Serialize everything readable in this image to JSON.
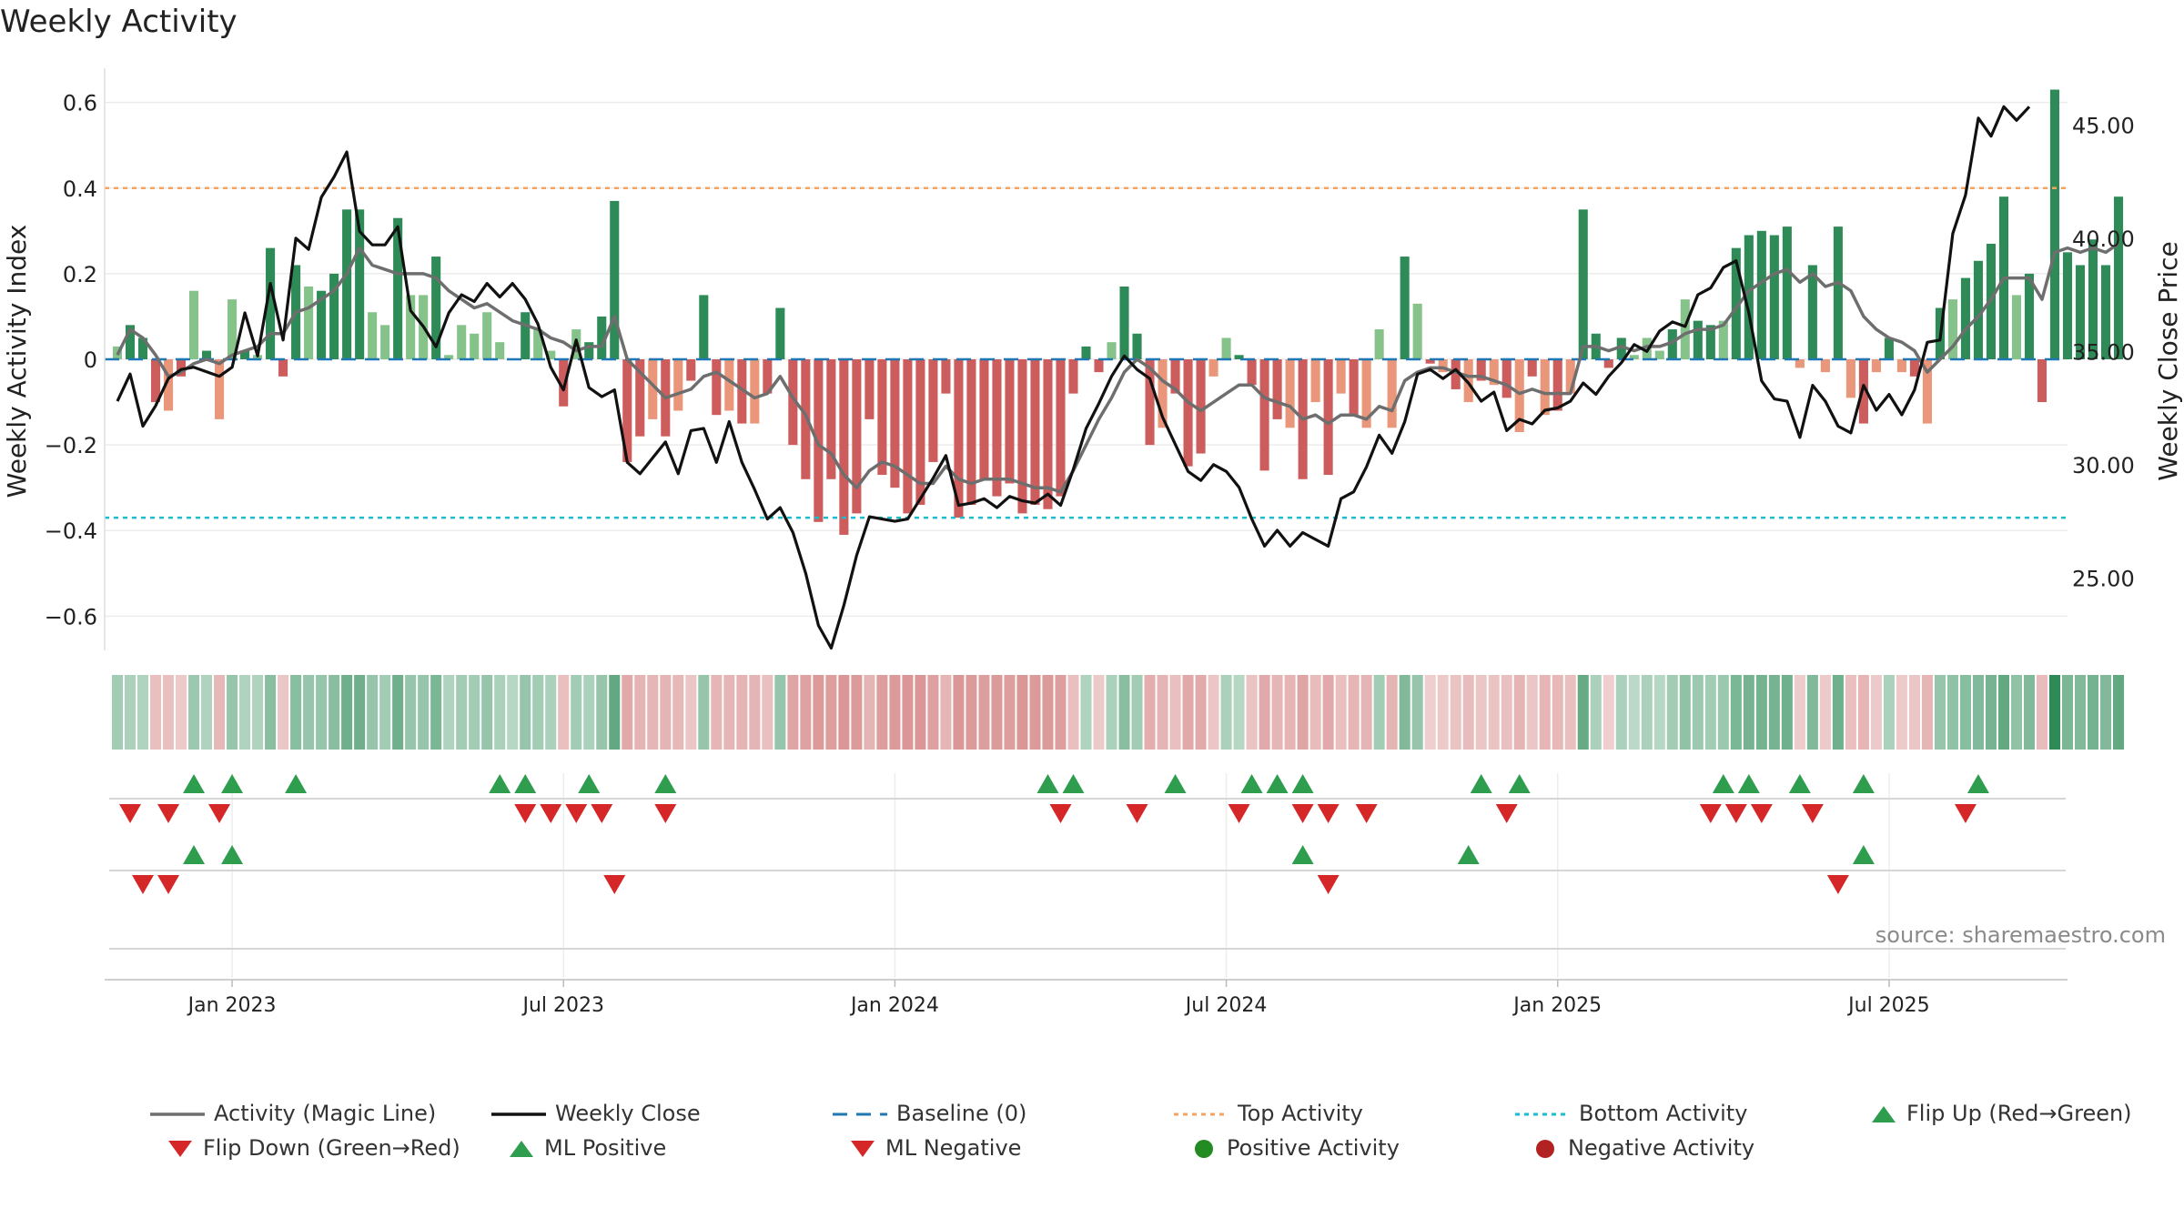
{
  "title": "Weekly Activity",
  "source": "source: sharemaestro.com",
  "colors": {
    "pos_strong": "#2e8b57",
    "pos_light": "#86c38a",
    "neg_strong": "#cd5c5c",
    "neg_light": "#e9967a",
    "magic_line": "#6e6e6e",
    "weekly_close": "#111111",
    "baseline": "#1f77b4",
    "top_activity": "#f4a460",
    "bottom_activity": "#17becf",
    "flip_up": "#2e9d4e",
    "flip_down": "#d62728"
  },
  "legend": [
    {
      "key": "magic",
      "label": "Activity (Magic Line)"
    },
    {
      "key": "close",
      "label": "Weekly Close"
    },
    {
      "key": "baseline",
      "label": "Baseline (0)"
    },
    {
      "key": "top",
      "label": "Top Activity"
    },
    {
      "key": "bottom",
      "label": "Bottom Activity"
    },
    {
      "key": "flipup",
      "label": "Flip Up (Red→Green)"
    },
    {
      "key": "flipdown",
      "label": "Flip Down (Green→Red)"
    },
    {
      "key": "mlpos",
      "label": "ML Positive"
    },
    {
      "key": "mlneg",
      "label": "ML Negative"
    },
    {
      "key": "posact",
      "label": "Positive Activity"
    },
    {
      "key": "negact",
      "label": "Negative Activity"
    }
  ],
  "chart_data": {
    "type": "bar",
    "title": "Weekly Activity",
    "ylabel": "Weekly Activity Index",
    "y2label": "Weekly Close Price",
    "ylim": [
      -0.68,
      0.68
    ],
    "y2lim": [
      21.8,
      47.5
    ],
    "yticks": [
      -0.6,
      -0.4,
      -0.2,
      0,
      0.2,
      0.4,
      0.6
    ],
    "ytick_labels": [
      "−0.6",
      "−0.4",
      "−0.2",
      "0",
      "0.2",
      "0.4",
      "0.6"
    ],
    "y2ticks": [
      25,
      30,
      35,
      40,
      45
    ],
    "y2tick_labels": [
      "25.00",
      "30.00",
      "35.00",
      "40.00",
      "45.00"
    ],
    "x_start_week": -9,
    "x_range_weeks": [
      -10,
      144
    ],
    "x_tick_weeks": [
      0,
      26,
      52,
      78,
      104,
      130
    ],
    "x_tick_labels": [
      "Jan 2023",
      "Jul 2023",
      "Jan 2024",
      "Jul 2024",
      "Jan 2025",
      "Jul 2025"
    ],
    "top_activity": 0.4,
    "bottom_activity": -0.37,
    "baseline": 0,
    "activity": [
      0.03,
      0.08,
      0.05,
      -0.1,
      -0.12,
      -0.04,
      0.16,
      0.02,
      -0.14,
      0.14,
      0.02,
      0.01,
      0.26,
      -0.04,
      0.22,
      0.17,
      0.16,
      0.2,
      0.35,
      0.35,
      0.11,
      0.08,
      0.33,
      0.15,
      0.15,
      0.24,
      0.01,
      0.08,
      0.06,
      0.11,
      0.04,
      0.0,
      0.11,
      0.07,
      0.02,
      -0.11,
      0.07,
      0.04,
      0.1,
      0.37,
      -0.24,
      -0.18,
      -0.14,
      -0.18,
      -0.12,
      -0.05,
      0.15,
      -0.13,
      -0.12,
      -0.15,
      -0.15,
      -0.08,
      0.12,
      -0.2,
      -0.28,
      -0.38,
      -0.28,
      -0.41,
      -0.36,
      -0.14,
      -0.27,
      -0.3,
      -0.36,
      -0.34,
      -0.24,
      -0.08,
      -0.37,
      -0.34,
      -0.28,
      -0.32,
      -0.29,
      -0.36,
      -0.34,
      -0.35,
      -0.32,
      -0.08,
      0.03,
      -0.03,
      0.04,
      0.17,
      0.06,
      -0.2,
      -0.16,
      -0.08,
      -0.25,
      -0.22,
      -0.04,
      0.05,
      0.01,
      -0.06,
      -0.26,
      -0.14,
      -0.16,
      -0.28,
      -0.1,
      -0.27,
      -0.08,
      -0.13,
      -0.16,
      0.07,
      -0.16,
      0.24,
      0.13,
      -0.01,
      -0.03,
      -0.07,
      -0.1,
      -0.05,
      -0.06,
      -0.09,
      -0.17,
      -0.04,
      -0.13,
      -0.12,
      -0.08,
      0.35,
      0.06,
      -0.02,
      0.05,
      0.01,
      0.05,
      0.02,
      0.07,
      0.14,
      0.09,
      0.08,
      0.09,
      0.26,
      0.29,
      0.3,
      0.29,
      0.31,
      -0.02,
      0.22,
      -0.03,
      0.31,
      -0.09,
      -0.15,
      -0.03,
      0.05,
      -0.03,
      -0.04,
      -0.15,
      0.12,
      0.14,
      0.19,
      0.23,
      0.27,
      0.38,
      0.15,
      0.2,
      -0.1,
      0.63,
      0.25,
      0.22,
      0.28,
      0.22,
      0.38
    ],
    "magic_line": [
      0.01,
      0.07,
      0.05,
      0.01,
      -0.04,
      -0.03,
      -0.01,
      0.0,
      -0.01,
      0.01,
      0.02,
      0.03,
      0.06,
      0.06,
      0.11,
      0.12,
      0.14,
      0.16,
      0.2,
      0.26,
      0.22,
      0.21,
      0.2,
      0.2,
      0.2,
      0.19,
      0.16,
      0.14,
      0.12,
      0.13,
      0.11,
      0.09,
      0.08,
      0.07,
      0.05,
      0.04,
      0.02,
      0.03,
      0.03,
      0.1,
      0.0,
      -0.03,
      -0.06,
      -0.09,
      -0.08,
      -0.07,
      -0.04,
      -0.03,
      -0.05,
      -0.07,
      -0.09,
      -0.08,
      -0.04,
      -0.09,
      -0.13,
      -0.2,
      -0.22,
      -0.27,
      -0.3,
      -0.26,
      -0.24,
      -0.25,
      -0.27,
      -0.29,
      -0.29,
      -0.25,
      -0.28,
      -0.29,
      -0.28,
      -0.28,
      -0.28,
      -0.29,
      -0.3,
      -0.3,
      -0.31,
      -0.26,
      -0.2,
      -0.14,
      -0.09,
      -0.03,
      0.0,
      -0.02,
      -0.05,
      -0.07,
      -0.1,
      -0.12,
      -0.1,
      -0.08,
      -0.06,
      -0.06,
      -0.09,
      -0.1,
      -0.11,
      -0.14,
      -0.13,
      -0.15,
      -0.13,
      -0.13,
      -0.14,
      -0.11,
      -0.12,
      -0.05,
      -0.03,
      -0.02,
      -0.02,
      -0.03,
      -0.04,
      -0.04,
      -0.05,
      -0.06,
      -0.08,
      -0.07,
      -0.08,
      -0.08,
      -0.08,
      0.03,
      0.03,
      0.02,
      0.03,
      0.02,
      0.03,
      0.03,
      0.04,
      0.06,
      0.07,
      0.07,
      0.08,
      0.12,
      0.16,
      0.18,
      0.2,
      0.21,
      0.18,
      0.2,
      0.17,
      0.18,
      0.16,
      0.1,
      0.07,
      0.05,
      0.04,
      0.02,
      -0.03,
      0.0,
      0.03,
      0.07,
      0.1,
      0.14,
      0.19,
      0.19,
      0.19,
      0.14,
      0.25,
      0.26,
      0.25,
      0.26,
      0.25,
      0.27
    ],
    "weekly_close": [
      32.8,
      34.0,
      31.7,
      32.6,
      33.8,
      34.2,
      34.3,
      34.1,
      33.9,
      34.3,
      36.7,
      34.8,
      38.0,
      35.5,
      40.0,
      39.5,
      41.8,
      42.7,
      43.8,
      40.3,
      39.7,
      39.7,
      40.5,
      36.8,
      36.1,
      35.2,
      36.7,
      37.5,
      37.2,
      38.0,
      37.4,
      38.0,
      37.3,
      36.2,
      34.3,
      33.3,
      35.5,
      33.4,
      33.0,
      33.3,
      30.1,
      29.6,
      30.3,
      31.0,
      29.6,
      31.5,
      31.6,
      30.1,
      31.9,
      30.1,
      28.9,
      27.6,
      28.1,
      27.0,
      25.2,
      22.9,
      21.9,
      23.8,
      26.0,
      27.7,
      27.6,
      27.5,
      27.6,
      28.5,
      29.4,
      30.4,
      28.2,
      28.3,
      28.5,
      28.1,
      28.6,
      28.4,
      28.3,
      28.7,
      28.2,
      29.8,
      31.6,
      32.7,
      33.9,
      34.8,
      34.2,
      33.8,
      32.1,
      30.9,
      29.7,
      29.3,
      30.0,
      29.7,
      29.0,
      27.6,
      26.4,
      27.1,
      26.4,
      27.0,
      26.7,
      26.4,
      28.5,
      28.8,
      29.9,
      31.3,
      30.5,
      31.9,
      34.0,
      34.2,
      33.8,
      34.2,
      33.6,
      32.8,
      33.2,
      31.5,
      32.0,
      31.8,
      32.4,
      32.5,
      32.8,
      33.6,
      33.1,
      33.9,
      34.5,
      35.3,
      35.0,
      35.9,
      36.3,
      36.1,
      37.5,
      37.8,
      38.7,
      39.0,
      36.7,
      33.7,
      32.9,
      32.8,
      31.2,
      33.5,
      32.8,
      31.7,
      31.4,
      33.5,
      32.4,
      33.1,
      32.2,
      33.3,
      35.4,
      35.5,
      40.2,
      41.9,
      45.3,
      44.5,
      45.8,
      45.2,
      45.8
    ]
  },
  "heatmap_row": [
    0.15,
    0.12,
    0.1,
    -0.15,
    -0.15,
    -0.08,
    0.18,
    0.1,
    -0.18,
    0.2,
    0.1,
    0.1,
    0.25,
    -0.1,
    0.25,
    0.2,
    0.2,
    0.25,
    0.35,
    0.35,
    0.2,
    0.15,
    0.35,
    0.2,
    0.2,
    0.3,
    0.1,
    0.15,
    0.15,
    0.2,
    0.12,
    0.08,
    0.2,
    0.15,
    0.12,
    -0.15,
    0.15,
    0.12,
    0.2,
    0.4,
    -0.28,
    -0.22,
    -0.2,
    -0.22,
    -0.18,
    -0.1,
    0.2,
    -0.2,
    -0.2,
    -0.22,
    -0.22,
    -0.15,
    0.2,
    -0.3,
    -0.32,
    -0.36,
    -0.34,
    -0.38,
    -0.36,
    -0.22,
    -0.34,
    -0.36,
    -0.38,
    -0.38,
    -0.33,
    -0.2,
    -0.38,
    -0.36,
    -0.34,
    -0.36,
    -0.34,
    -0.38,
    -0.36,
    -0.36,
    -0.34,
    -0.15,
    0.1,
    -0.08,
    0.12,
    0.25,
    0.15,
    -0.25,
    -0.22,
    -0.15,
    -0.28,
    -0.26,
    -0.1,
    0.12,
    0.08,
    -0.12,
    -0.28,
    -0.2,
    -0.22,
    -0.3,
    -0.16,
    -0.28,
    -0.15,
    -0.2,
    -0.22,
    0.15,
    -0.22,
    0.28,
    0.2,
    -0.05,
    -0.08,
    -0.12,
    -0.16,
    -0.1,
    -0.12,
    -0.15,
    -0.22,
    -0.1,
    -0.2,
    -0.18,
    -0.15,
    0.38,
    0.12,
    -0.05,
    0.12,
    0.06,
    0.12,
    0.08,
    0.15,
    0.22,
    0.18,
    0.15,
    0.18,
    0.3,
    0.32,
    0.33,
    0.32,
    0.34,
    -0.06,
    0.28,
    -0.08,
    0.34,
    -0.15,
    -0.2,
    -0.08,
    0.12,
    -0.08,
    -0.1,
    -0.2,
    0.2,
    0.22,
    0.26,
    0.28,
    0.32,
    0.4,
    0.22,
    0.28,
    -0.16,
    0.6,
    0.3,
    0.28,
    0.33,
    0.28,
    0.4
  ],
  "signals": {
    "flip_up_weeks": [
      -3,
      0,
      5,
      21,
      23,
      28,
      34,
      64,
      66,
      74,
      80,
      82,
      84,
      98,
      101,
      117,
      119,
      123,
      128,
      137
    ],
    "flip_down_weeks": [
      -8,
      -5,
      -1,
      23,
      25,
      27,
      29,
      34,
      65,
      71,
      79,
      84,
      86,
      89,
      100,
      116,
      118,
      120,
      124,
      136
    ],
    "ml_positive_weeks": [
      -3,
      0,
      84,
      97,
      128
    ],
    "ml_negative_weeks": [
      -7,
      -5,
      30,
      86,
      126
    ]
  }
}
